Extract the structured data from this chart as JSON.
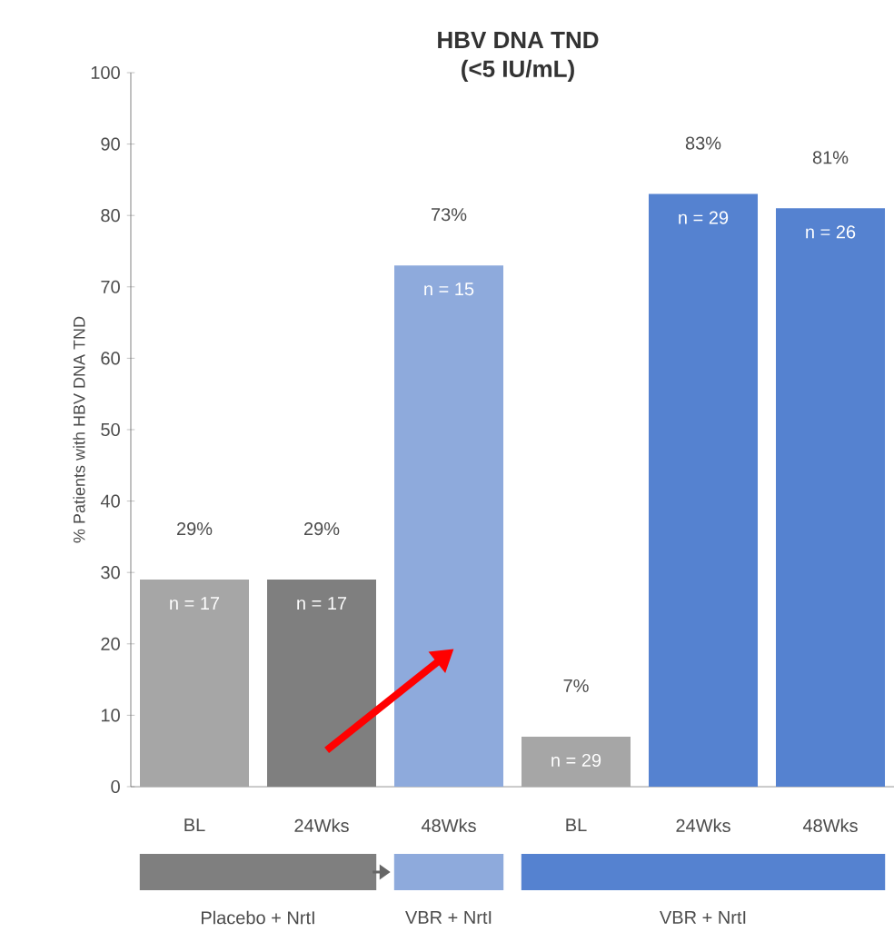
{
  "chart_data": {
    "type": "bar",
    "title": "HBV DNA TND",
    "subtitle": "(<5 IU/mL)",
    "ylabel": "% Patients with HBV DNA TND",
    "categories": [
      "BL",
      "24Wks",
      "48Wks",
      "BL",
      "24Wks",
      "48Wks"
    ],
    "values": [
      29,
      29,
      73,
      7,
      83,
      81
    ],
    "value_labels": [
      "29%",
      "29%",
      "73%",
      "7%",
      "83%",
      "81%"
    ],
    "colors": [
      "#a6a6a6",
      "#7f7f7f",
      "#8eaadc",
      "#a6a6a6",
      "#5582d0",
      "#5582d0"
    ],
    "ylim": [
      0,
      100
    ],
    "yticks": [
      0,
      10,
      20,
      30,
      40,
      50,
      60,
      70,
      80,
      90,
      100
    ],
    "annotations": [
      "n = 17",
      "n = 17",
      "n = 15",
      "n = 29",
      "n = 29",
      "n = 26",
      "Placebo + NrtI",
      "VBR + NrtI",
      "VBR + NrtI"
    ]
  }
}
